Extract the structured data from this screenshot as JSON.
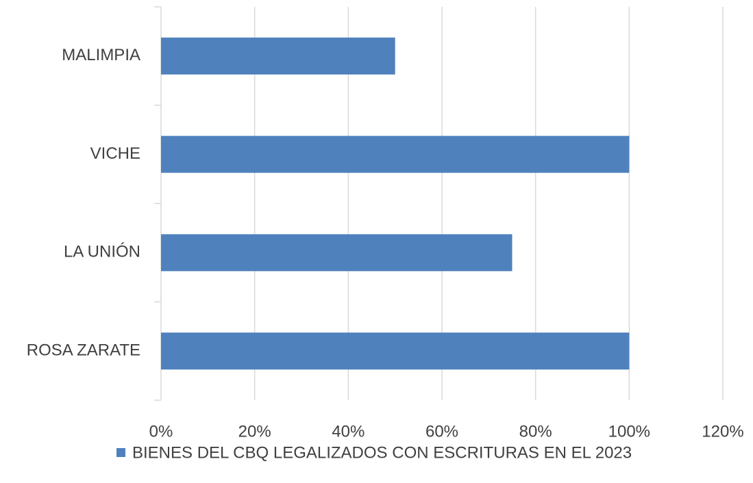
{
  "chart_data": {
    "type": "bar",
    "orientation": "horizontal",
    "categories": [
      "MALIMPIA",
      "VICHE",
      "LA UNIÓN",
      "ROSA ZARATE"
    ],
    "series": [
      {
        "name": "BIENES DEL CBQ LEGALIZADOS CON ESCRITURAS EN EL 2023",
        "color": "#4f81bd",
        "values": [
          50,
          100,
          75,
          100
        ]
      }
    ],
    "xlim": [
      0,
      120
    ],
    "xticks": [
      {
        "value": 0,
        "label": "0%"
      },
      {
        "value": 20,
        "label": "20%"
      },
      {
        "value": 40,
        "label": "40%"
      },
      {
        "value": 60,
        "label": "60%"
      },
      {
        "value": 80,
        "label": "80%"
      },
      {
        "value": 100,
        "label": "100%"
      },
      {
        "value": 120,
        "label": "120%"
      }
    ],
    "grid": true,
    "legend": "bottom"
  }
}
